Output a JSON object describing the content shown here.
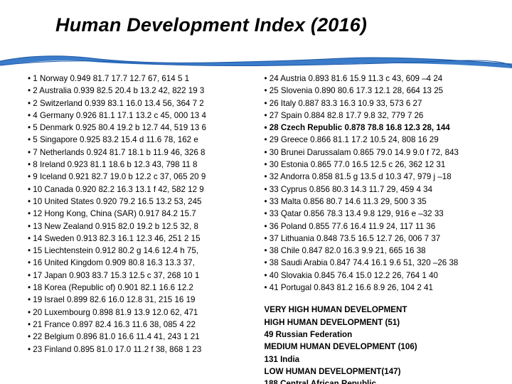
{
  "title": "Human Development Index (2016)",
  "wave": {
    "fill": "#3a7cc9",
    "stroke": "#1d56a5"
  },
  "left_col": [
    "• 1 Norway 0.949 81.7 17.7 12.7 67, 614 5 1",
    "• 2 Australia 0.939 82.5 20.4 b 13.2 42, 822 19 3",
    "• 2 Switzerland 0.939 83.1 16.0 13.4 56, 364 7 2",
    "• 4 Germany 0.926 81.1 17.1 13.2 c 45, 000 13 4",
    "• 5 Denmark 0.925 80.4 19.2 b 12.7 44, 519 13 6",
    "• 5 Singapore 0.925 83.2 15.4 d 11.6 78, 162 e",
    "• 7 Netherlands 0.924 81.7 18.1 b 11.9 46, 326 8",
    "• 8 Ireland 0.923 81.1 18.6 b 12.3 43, 798 11 8",
    "• 9 Iceland 0.921 82.7 19.0 b 12.2 c 37, 065 20 9",
    "• 10 Canada 0.920 82.2 16.3 13.1 f 42, 582 12 9",
    "• 10 United States 0.920 79.2 16.5 13.2 53, 245",
    "• 12 Hong Kong, China (SAR) 0.917 84.2 15.7",
    "• 13 New Zealand 0.915 82.0 19.2 b 12.5 32, 8",
    "• 14 Sweden 0.913 82.3 16.1 12.3 46, 251 2 15",
    "• 15 Liechtenstein 0.912 80.2 g 14.6 12.4 h 75,",
    "• 16 United Kingdom 0.909 80.8 16.3 13.3 37,",
    "• 17 Japan 0.903 83.7 15.3 12.5 c 37, 268 10 1",
    "• 18 Korea (Republic of) 0.901 82.1 16.6 12.2",
    "• 19 Israel 0.899 82.6 16.0 12.8 31, 215 16 19",
    "• 20 Luxembourg 0.898 81.9 13.9 12.0 62, 471",
    "• 21 France 0.897 82.4 16.3 11.6 38, 085 4 22",
    "• 22 Belgium 0.896 81.0 16.6 11.4 41, 243 1 21",
    "• 23 Finland 0.895 81.0 17.0 11.2 f 38, 868 1 23"
  ],
  "right_col": [
    {
      "text": "• 24 Austria 0.893 81.6 15.9 11.3 c 43, 609 –4 24",
      "bold": false
    },
    {
      "text": "• 25 Slovenia 0.890 80.6 17.3 12.1 28, 664 13 25",
      "bold": false
    },
    {
      "text": "• 26 Italy 0.887 83.3 16.3 10.9 33, 573 6 27",
      "bold": false
    },
    {
      "text": "• 27 Spain 0.884 82.8 17.7 9.8 32, 779 7 26",
      "bold": false
    },
    {
      "text": "• 28 Czech Republic 0.878 78.8 16.8 12.3 28, 144",
      "bold": true
    },
    {
      "text": "• 29 Greece 0.866 81.1 17.2 10.5 24, 808 16 29",
      "bold": false
    },
    {
      "text": "• 30 Brunei Darussalam 0.865 79.0 14.9 9.0 f 72, 843",
      "bold": false
    },
    {
      "text": "• 30 Estonia 0.865 77.0 16.5 12.5 c 26, 362 12 31",
      "bold": false
    },
    {
      "text": "• 32 Andorra 0.858 81.5 g 13.5 d 10.3 47, 979 j –18",
      "bold": false
    },
    {
      "text": "• 33 Cyprus 0.856 80.3 14.3 11.7 29, 459 4 34",
      "bold": false
    },
    {
      "text": "• 33 Malta 0.856 80.7 14.6 11.3 29, 500 3 35",
      "bold": false
    },
    {
      "text": "• 33 Qatar 0.856 78.3 13.4 9.8 129, 916 e –32 33",
      "bold": false
    },
    {
      "text": "• 36 Poland 0.855 77.6 16.4 11.9 24, 117 11 36",
      "bold": false
    },
    {
      "text": "• 37 Lithuania 0.848 73.5 16.5 12.7 26, 006 7 37",
      "bold": false
    },
    {
      "text": "• 38 Chile 0.847 82.0 16.3 9.9 21, 665 16 38",
      "bold": false
    },
    {
      "text": "• 38 Saudi Arabia 0.847 74.4 16.1 9.6 51, 320 –26 38",
      "bold": false
    },
    {
      "text": "• 40 Slovakia 0.845 76.4 15.0 12.2 26, 764 1 40",
      "bold": false
    },
    {
      "text": "• 41 Portugal 0.843 81.2 16.6 8.9 26, 104 2 41",
      "bold": false
    }
  ],
  "sections": [
    "VERY HIGH HUMAN DEVELOPMENT",
    "HIGH HUMAN DEVELOPMENT (51)",
    "49 Russian Federation",
    "MEDIUM HUMAN DEVELOPMENT (106)",
    "131 India",
    "LOW HUMAN DEVELOPMENT(147)",
    "188 Central African Republic"
  ]
}
